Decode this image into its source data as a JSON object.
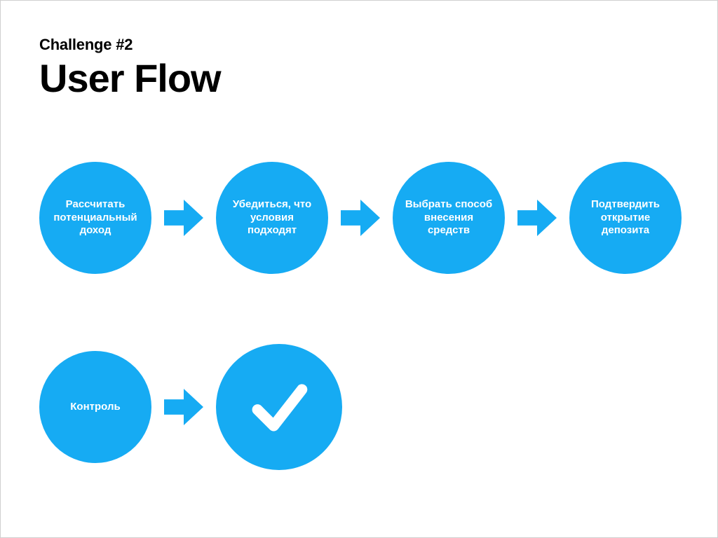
{
  "header": {
    "subtitle": "Challenge #2",
    "title": "User Flow"
  },
  "style": {
    "node_color": "#16abf3",
    "arrow_color": "#16abf3",
    "text_color": "#ffffff",
    "background_color": "#ffffff",
    "node_diameter_small": 160,
    "node_diameter_large": 180,
    "node_font_size": 15,
    "arrow_width": 56,
    "arrow_height": 52,
    "title_fontsize": 56,
    "subtitle_fontsize": 22
  },
  "flow": {
    "type": "flowchart",
    "rows": [
      {
        "nodes": [
          {
            "id": "calc",
            "label": "Рассчитать потенциальный доход",
            "size": "small"
          },
          {
            "id": "verify",
            "label": "Убедиться, что условия подходят",
            "size": "small"
          },
          {
            "id": "method",
            "label": "Выбрать способ внесения средств",
            "size": "small"
          },
          {
            "id": "confirm",
            "label": "Подтвердить открытие депозита",
            "size": "small"
          }
        ],
        "arrows_after": [
          0,
          1,
          2
        ]
      },
      {
        "nodes": [
          {
            "id": "control",
            "label": "Контроль",
            "size": "small"
          },
          {
            "id": "done",
            "label": "",
            "icon": "checkmark",
            "size": "large"
          }
        ],
        "arrows_after": [
          0
        ]
      }
    ]
  }
}
